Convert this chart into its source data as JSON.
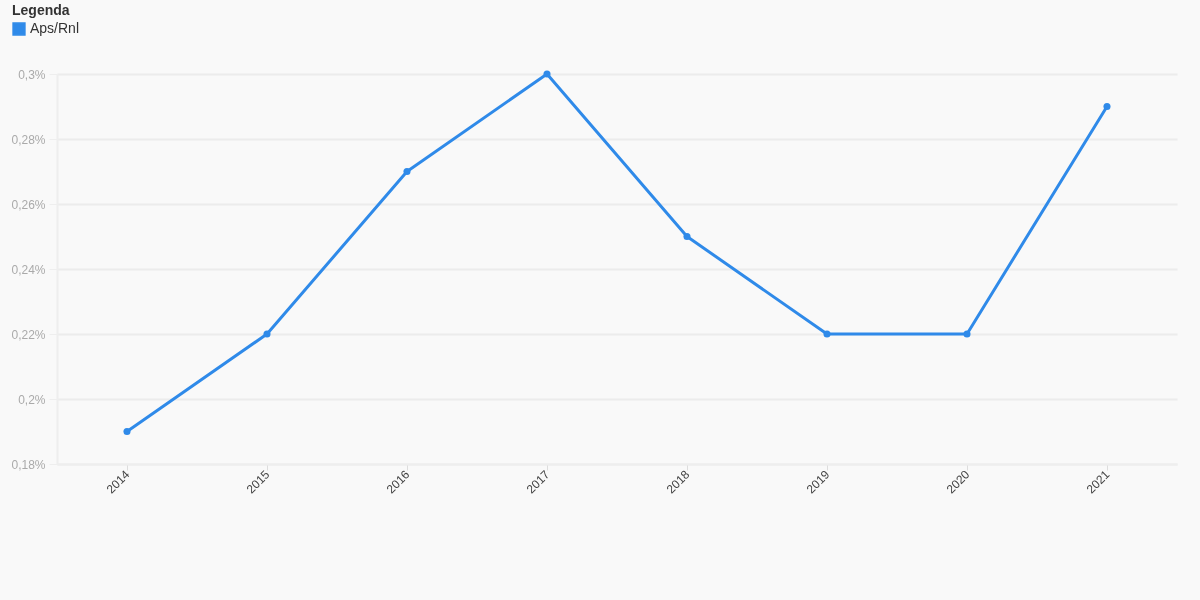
{
  "chart_data": {
    "type": "line",
    "legend_title": "Legenda",
    "categories": [
      "2014",
      "2015",
      "2016",
      "2017",
      "2018",
      "2019",
      "2020",
      "2021"
    ],
    "series": [
      {
        "name": "Aps/Rnl",
        "color": "#2f8ae9",
        "values": [
          0.19,
          0.22,
          0.27,
          0.3,
          0.25,
          0.22,
          0.22,
          0.29
        ]
      }
    ],
    "ylim": [
      0.18,
      0.3
    ],
    "yticks": [
      {
        "value": 0.18,
        "label": "0,18%"
      },
      {
        "value": 0.2,
        "label": "0,2%"
      },
      {
        "value": 0.22,
        "label": "0,22%"
      },
      {
        "value": 0.24,
        "label": "0,24%"
      },
      {
        "value": 0.26,
        "label": "0,26%"
      },
      {
        "value": 0.28,
        "label": "0,28%"
      },
      {
        "value": 0.3,
        "label": "0,3%"
      }
    ],
    "grid": "y",
    "legend": "top left",
    "marker": "circle",
    "line_style": "solid"
  }
}
